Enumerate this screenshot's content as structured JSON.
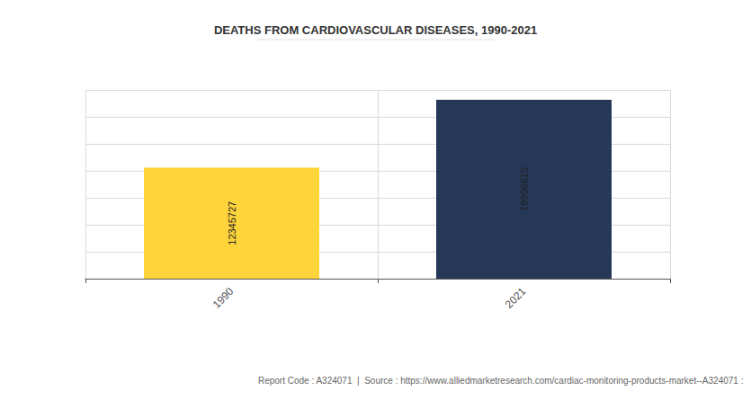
{
  "chart_data": {
    "type": "bar",
    "title": "DEATHS FROM CARDIOVASCULAR DISEASES, 1990-2021",
    "categories": [
      "1990",
      "2021"
    ],
    "values": [
      12345727,
      19906615
    ],
    "colors": [
      "#ffd43b",
      "#253858"
    ],
    "ylim": [
      0,
      21000000
    ],
    "yticks": [
      0,
      3000000,
      6000000,
      9000000,
      12000000,
      15000000,
      18000000,
      21000000
    ],
    "grid": true,
    "data_labels": true,
    "tick_labels": "x",
    "annotations": [
      "Report Code : A324071  |  Source : https://www.alliedmarketresearch.com/cardiac-monitoring-products-market--A324071 :"
    ]
  }
}
